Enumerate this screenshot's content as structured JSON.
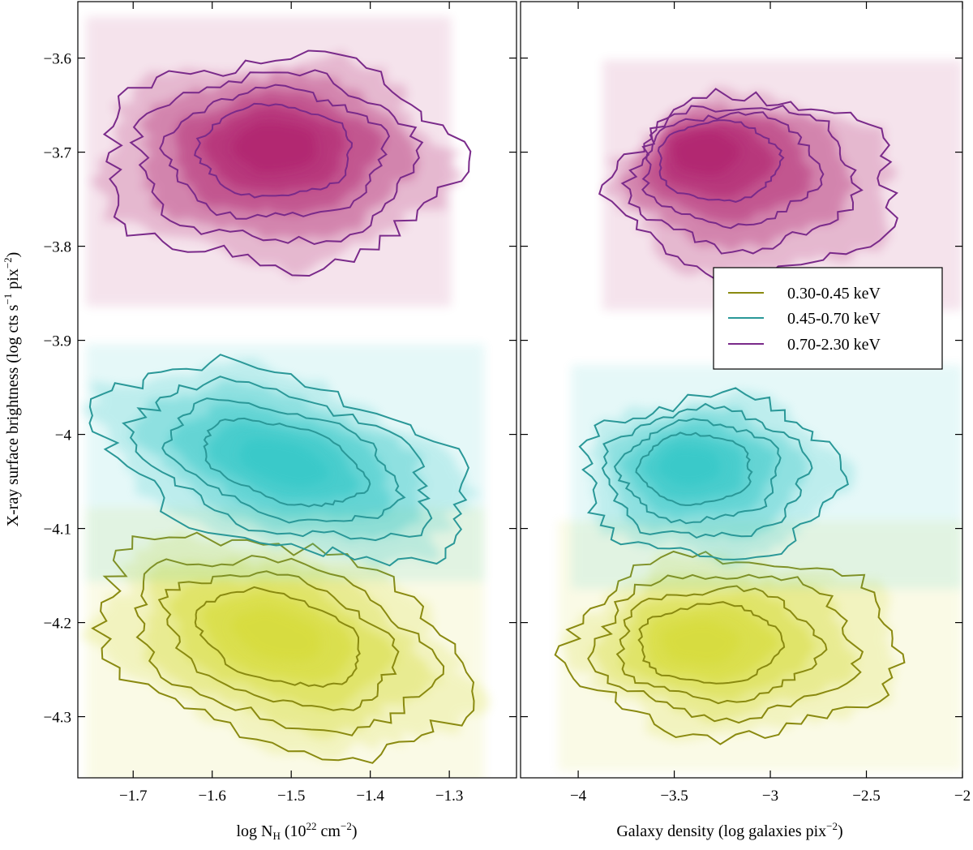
{
  "chart_data": [
    {
      "type": "heatmap",
      "panel": "left",
      "xlabel": "log N",
      "xlabel_sub": "H",
      "xlabel_unit": "(10",
      "xlabel_exp1": "22",
      "xlabel_mid": " cm",
      "xlabel_exp2": "−2",
      "xlabel_end": ")",
      "ylabel": "X-ray surface brightness (log cts s",
      "ylabel_exp1": "−1",
      "ylabel_mid": " pix",
      "ylabel_exp2": "−2",
      "ylabel_end": ")",
      "xlim": [
        -1.77,
        -1.215
      ],
      "ylim": [
        -4.365,
        -3.54
      ],
      "x_ticks": [
        -1.7,
        -1.6,
        -1.5,
        -1.4,
        -1.3
      ],
      "x_tick_labels": [
        "−1.7",
        "−1.6",
        "−1.5",
        "−1.4",
        "−1.3"
      ],
      "y_ticks": [
        -4.3,
        -4.2,
        -4.1,
        -4.0,
        -3.9,
        -3.8,
        -3.7,
        -3.6
      ],
      "y_tick_labels": [
        "−4.3",
        "−4.2",
        "−4.1",
        "−4",
        "−3.9",
        "−3.8",
        "−3.7",
        "−3.6"
      ],
      "series": [
        {
          "band": "0.30-0.45 keV",
          "color": "#8a8a10",
          "fill": "#d7dc3a",
          "peak": {
            "x": -1.52,
            "y": -4.21
          },
          "outer_extent_x": [
            -1.75,
            -1.27
          ],
          "outer_extent_y": [
            -4.33,
            -4.12
          ]
        },
        {
          "band": "0.45-0.70 keV",
          "color": "#2a9898",
          "fill": "#35c8c8",
          "peak": {
            "x": -1.51,
            "y": -4.03
          },
          "outer_extent_x": [
            -1.75,
            -1.27
          ],
          "outer_extent_y": [
            -4.12,
            -3.94
          ]
        },
        {
          "band": "0.70-2.30 keV",
          "color": "#7a2a8a",
          "fill": "#b0206e",
          "peak": {
            "x": -1.52,
            "y": -3.69
          },
          "outer_extent_x": [
            -1.74,
            -1.3
          ],
          "outer_extent_y": [
            -3.82,
            -3.6
          ]
        }
      ]
    },
    {
      "type": "heatmap",
      "panel": "right",
      "xlabel": "Galaxy density (log galaxies pix",
      "xlabel_exp": "−2",
      "xlabel_end": ")",
      "xlim": [
        -4.3,
        -2.0
      ],
      "ylim": [
        -4.365,
        -3.54
      ],
      "x_ticks": [
        -4.0,
        -3.5,
        -3.0,
        -2.5,
        -2.0
      ],
      "x_tick_labels": [
        "−4",
        "−3.5",
        "−3",
        "−2.5",
        "−2"
      ],
      "legend": {
        "placement": "center-right",
        "entries": [
          {
            "label": "0.30-0.45 keV",
            "color": "#8a8a10"
          },
          {
            "label": "0.45-0.70 keV",
            "color": "#2a9898"
          },
          {
            "label": "0.70-2.30 keV",
            "color": "#7a2a8a"
          }
        ]
      },
      "series": [
        {
          "band": "0.30-0.45 keV",
          "color": "#8a8a10",
          "fill": "#d7dc3a",
          "peak": {
            "x": -3.42,
            "y": -4.22
          },
          "outer_extent_x": [
            -4.02,
            -2.34
          ],
          "outer_extent_y": [
            -4.32,
            -4.13
          ]
        },
        {
          "band": "0.45-0.70 keV",
          "color": "#2a9898",
          "fill": "#35c8c8",
          "peak": {
            "x": -3.45,
            "y": -4.03
          },
          "outer_extent_x": [
            -3.97,
            -2.65
          ],
          "outer_extent_y": [
            -4.13,
            -3.96
          ]
        },
        {
          "band": "0.70-2.30 keV",
          "color": "#7a2a8a",
          "fill": "#b0206e",
          "peak": {
            "x": -3.42,
            "y": -3.69
          },
          "outer_extent_x": [
            -3.8,
            -2.35
          ],
          "outer_extent_y": [
            -3.83,
            -3.64
          ]
        }
      ]
    }
  ]
}
